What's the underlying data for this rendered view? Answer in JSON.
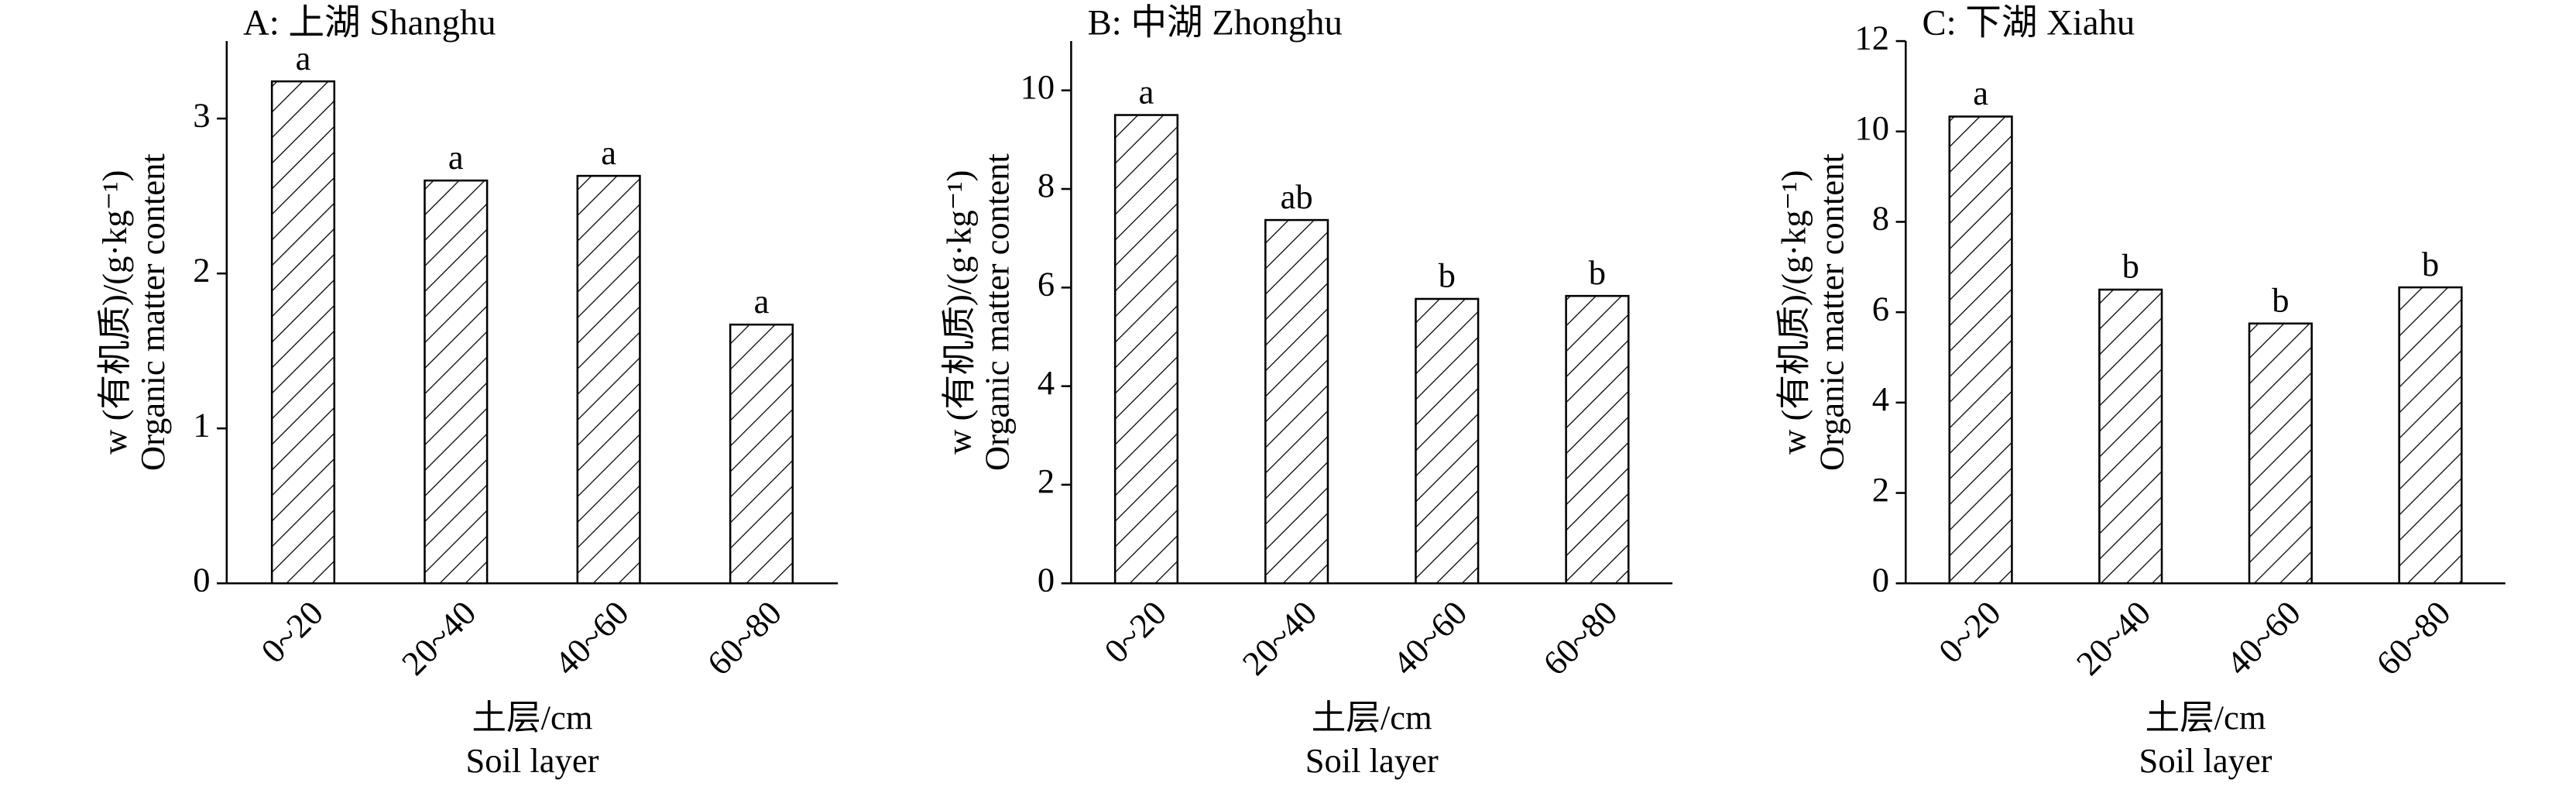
{
  "chart_data": [
    {
      "type": "bar",
      "title": "A: 上湖 Shanghu",
      "y_label": [
        "w (有机质)/(g·kg⁻¹)",
        "Organic matter content"
      ],
      "x_label": [
        "土层/cm",
        "Soil layer"
      ],
      "categories": [
        "0~20",
        "20~40",
        "40~60",
        "60~80"
      ],
      "values": [
        3.24,
        2.6,
        2.63,
        1.67
      ],
      "significance": [
        "a",
        "a",
        "a",
        "a"
      ],
      "ylim": [
        0,
        3.5
      ],
      "yticks": [
        0,
        1,
        2,
        3
      ],
      "color": "#000000"
    },
    {
      "type": "bar",
      "title": "B: 中湖 Zhonghu",
      "y_label": [
        "w (有机质)/(g·kg⁻¹)",
        "Organic matter content"
      ],
      "x_label": [
        "土层/cm",
        "Soil layer"
      ],
      "categories": [
        "0~20",
        "20~40",
        "40~60",
        "60~80"
      ],
      "values": [
        9.5,
        7.37,
        5.77,
        5.83
      ],
      "significance": [
        "a",
        "ab",
        "b",
        "b"
      ],
      "ylim": [
        0,
        11
      ],
      "yticks": [
        0,
        2,
        4,
        6,
        8,
        10
      ],
      "color": "#000000"
    },
    {
      "type": "bar",
      "title": "C: 下湖 Xiahu",
      "y_label": [
        "w (有机质)/(g·kg⁻¹)",
        "Organic matter content"
      ],
      "x_label": [
        "土层/cm",
        "Soil layer"
      ],
      "categories": [
        "0~20",
        "20~40",
        "40~60",
        "60~80"
      ],
      "values": [
        10.33,
        6.5,
        5.75,
        6.55
      ],
      "significance": [
        "a",
        "b",
        "b",
        "b"
      ],
      "ylim": [
        0,
        12
      ],
      "yticks": [
        0,
        2,
        4,
        6,
        8,
        10,
        12
      ],
      "color": "#000000"
    }
  ]
}
